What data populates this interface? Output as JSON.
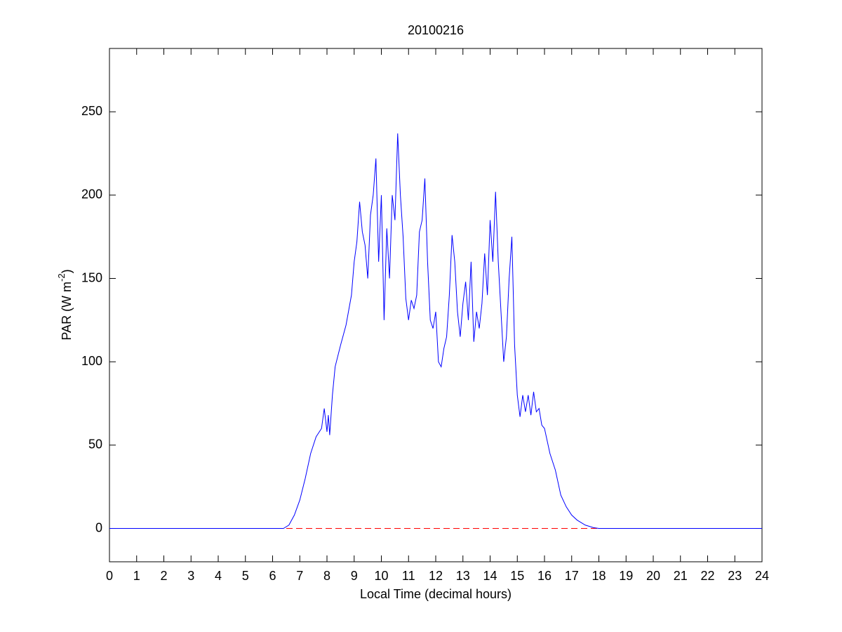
{
  "chart_data": {
    "type": "line",
    "title": "20100216",
    "xlabel": "Local Time (decimal hours)",
    "ylabel": [
      "PAR (W m",
      "-2",
      ")"
    ],
    "x": [
      0,
      6.4,
      6.6,
      6.8,
      7.0,
      7.2,
      7.4,
      7.6,
      7.8,
      7.9,
      8.0,
      8.05,
      8.1,
      8.2,
      8.3,
      8.5,
      8.7,
      8.9,
      9.0,
      9.1,
      9.2,
      9.3,
      9.4,
      9.5,
      9.6,
      9.7,
      9.8,
      9.9,
      10.0,
      10.1,
      10.2,
      10.3,
      10.4,
      10.5,
      10.6,
      10.7,
      10.8,
      10.9,
      11.0,
      11.1,
      11.2,
      11.3,
      11.4,
      11.5,
      11.6,
      11.7,
      11.8,
      11.9,
      12.0,
      12.1,
      12.2,
      12.3,
      12.4,
      12.5,
      12.6,
      12.7,
      12.8,
      12.9,
      13.0,
      13.1,
      13.2,
      13.3,
      13.4,
      13.5,
      13.6,
      13.7,
      13.8,
      13.9,
      14.0,
      14.1,
      14.2,
      14.3,
      14.4,
      14.5,
      14.6,
      14.7,
      14.8,
      14.9,
      15.0,
      15.1,
      15.2,
      15.3,
      15.4,
      15.5,
      15.6,
      15.7,
      15.8,
      15.9,
      16.0,
      16.2,
      16.4,
      16.6,
      16.8,
      17.0,
      17.2,
      17.5,
      17.8,
      18.0,
      24
    ],
    "series": [
      {
        "color": "#0000ff",
        "values": [
          0,
          0,
          2,
          8,
          17,
          30,
          45,
          55,
          60,
          72,
          58,
          68,
          56,
          80,
          97,
          110,
          122,
          140,
          160,
          172,
          196,
          178,
          170,
          150,
          188,
          200,
          222,
          160,
          200,
          125,
          180,
          150,
          200,
          185,
          237,
          200,
          175,
          138,
          125,
          137,
          132,
          140,
          178,
          185,
          210,
          160,
          125,
          120,
          130,
          100,
          97,
          108,
          115,
          140,
          176,
          160,
          130,
          115,
          135,
          148,
          125,
          160,
          112,
          130,
          120,
          135,
          165,
          140,
          185,
          160,
          202,
          160,
          130,
          100,
          115,
          150,
          175,
          110,
          80,
          67,
          80,
          70,
          80,
          68,
          82,
          70,
          72,
          62,
          60,
          45,
          35,
          20,
          13,
          8,
          5,
          2,
          0.5,
          0,
          0
        ]
      }
    ],
    "reference_line": {
      "value": 0,
      "color": "#ff0000",
      "dashed": true
    },
    "xlim": [
      0,
      24
    ],
    "xticks": [
      0,
      1,
      2,
      3,
      4,
      5,
      6,
      7,
      8,
      9,
      10,
      11,
      12,
      13,
      14,
      15,
      16,
      17,
      18,
      19,
      20,
      21,
      22,
      23,
      24
    ],
    "ylim": [
      -20,
      288
    ],
    "yticks": [
      0,
      50,
      100,
      150,
      200,
      250
    ]
  }
}
